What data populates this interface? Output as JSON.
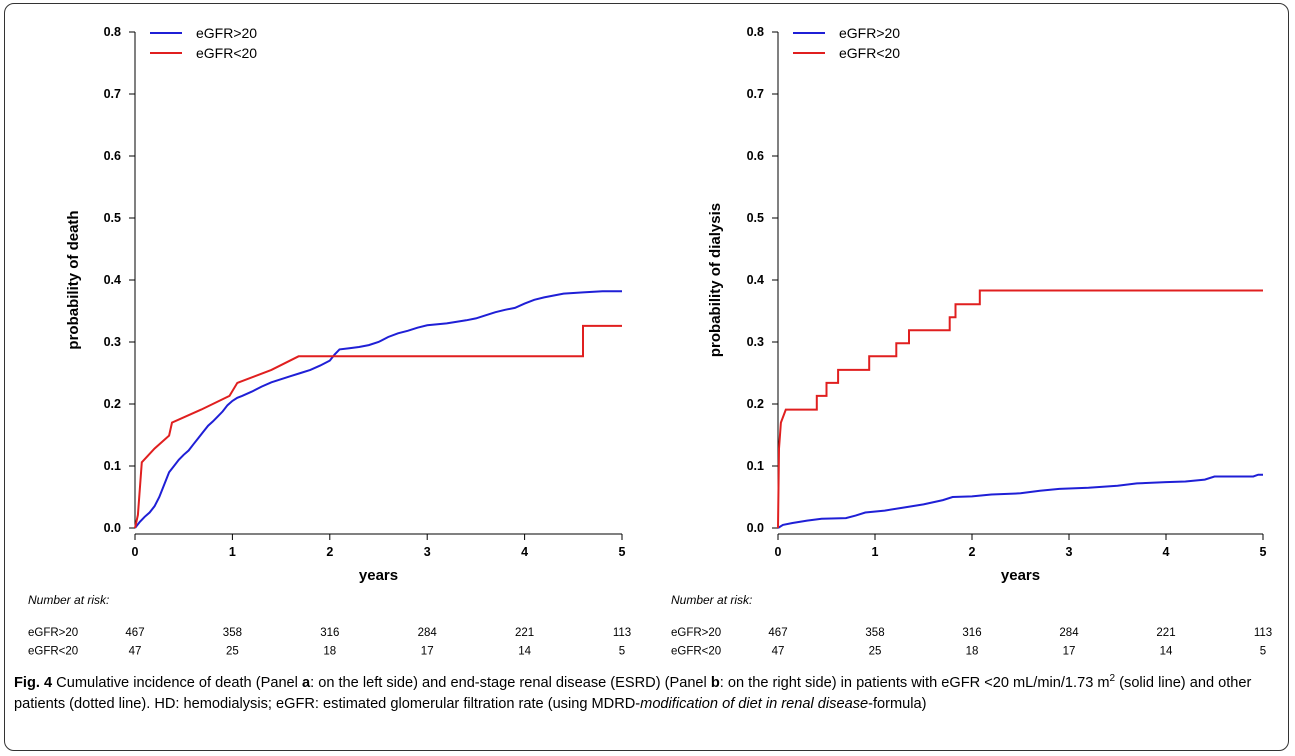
{
  "chart_data": [
    {
      "type": "line",
      "panel": "a",
      "xlabel": "years",
      "ylabel": "probability of death",
      "xlim": [
        0,
        5
      ],
      "ylim": [
        0,
        0.8
      ],
      "xticks": [
        0,
        1,
        2,
        3,
        4,
        5
      ],
      "yticks": [
        0.0,
        0.1,
        0.2,
        0.3,
        0.4,
        0.5,
        0.6,
        0.7,
        0.8
      ],
      "ytick_labels": [
        "0.0",
        "0.1",
        "0.2",
        "0.3",
        "0.4",
        "0.5",
        "0.6",
        "0.7",
        "0.8"
      ],
      "legend_position": "top-left",
      "series": [
        {
          "name": "eGFR>20",
          "color": "#1f1fd6",
          "points": [
            [
              0,
              0
            ],
            [
              0.05,
              0.01
            ],
            [
              0.1,
              0.018
            ],
            [
              0.15,
              0.025
            ],
            [
              0.2,
              0.035
            ],
            [
              0.25,
              0.05
            ],
            [
              0.3,
              0.07
            ],
            [
              0.35,
              0.09
            ],
            [
              0.4,
              0.1
            ],
            [
              0.45,
              0.11
            ],
            [
              0.5,
              0.118
            ],
            [
              0.55,
              0.125
            ],
            [
              0.6,
              0.135
            ],
            [
              0.65,
              0.145
            ],
            [
              0.7,
              0.155
            ],
            [
              0.75,
              0.165
            ],
            [
              0.8,
              0.172
            ],
            [
              0.85,
              0.18
            ],
            [
              0.9,
              0.188
            ],
            [
              0.95,
              0.198
            ],
            [
              1.0,
              0.205
            ],
            [
              1.05,
              0.21
            ],
            [
              1.1,
              0.213
            ],
            [
              1.2,
              0.22
            ],
            [
              1.3,
              0.228
            ],
            [
              1.4,
              0.235
            ],
            [
              1.5,
              0.24
            ],
            [
              1.6,
              0.245
            ],
            [
              1.7,
              0.25
            ],
            [
              1.8,
              0.255
            ],
            [
              1.9,
              0.262
            ],
            [
              2.0,
              0.27
            ],
            [
              2.05,
              0.28
            ],
            [
              2.1,
              0.288
            ],
            [
              2.2,
              0.29
            ],
            [
              2.3,
              0.292
            ],
            [
              2.4,
              0.295
            ],
            [
              2.5,
              0.3
            ],
            [
              2.6,
              0.308
            ],
            [
              2.7,
              0.314
            ],
            [
              2.8,
              0.318
            ],
            [
              2.9,
              0.323
            ],
            [
              3.0,
              0.327
            ],
            [
              3.2,
              0.33
            ],
            [
              3.4,
              0.335
            ],
            [
              3.5,
              0.338
            ],
            [
              3.6,
              0.343
            ],
            [
              3.7,
              0.348
            ],
            [
              3.8,
              0.352
            ],
            [
              3.9,
              0.355
            ],
            [
              4.0,
              0.362
            ],
            [
              4.1,
              0.368
            ],
            [
              4.2,
              0.372
            ],
            [
              4.3,
              0.375
            ],
            [
              4.4,
              0.378
            ],
            [
              4.6,
              0.38
            ],
            [
              4.8,
              0.382
            ],
            [
              5.0,
              0.382
            ]
          ]
        },
        {
          "name": "eGFR<20",
          "color": "#e01f1f",
          "points": [
            [
              0,
              0
            ],
            [
              0.03,
              0.021
            ],
            [
              0.07,
              0.106
            ],
            [
              0.2,
              0.128
            ],
            [
              0.35,
              0.149
            ],
            [
              0.38,
              0.17
            ],
            [
              0.68,
              0.191
            ],
            [
              0.97,
              0.213
            ],
            [
              1.05,
              0.234
            ],
            [
              1.4,
              0.255
            ],
            [
              1.68,
              0.277
            ],
            [
              4.6,
              0.277
            ],
            [
              4.6,
              0.326
            ],
            [
              5.0,
              0.326
            ]
          ]
        }
      ],
      "risk_table": {
        "title": "Number at risk:",
        "times": [
          0,
          1,
          2,
          3,
          4,
          5
        ],
        "rows": [
          {
            "label": "eGFR>20",
            "values": [
              "467",
              "358",
              "316",
              "284",
              "221",
              "113"
            ]
          },
          {
            "label": "eGFR<20",
            "values": [
              "47",
              "25",
              "18",
              "17",
              "14",
              "5"
            ]
          }
        ]
      }
    },
    {
      "type": "line",
      "panel": "b",
      "xlabel": "years",
      "ylabel": "probability of dialysis",
      "xlim": [
        0,
        5
      ],
      "ylim": [
        0,
        0.8
      ],
      "xticks": [
        0,
        1,
        2,
        3,
        4,
        5
      ],
      "yticks": [
        0.0,
        0.1,
        0.2,
        0.3,
        0.4,
        0.5,
        0.6,
        0.7,
        0.8
      ],
      "ytick_labels": [
        "0.0",
        "0.1",
        "0.2",
        "0.3",
        "0.4",
        "0.5",
        "0.6",
        "0.7",
        "0.8"
      ],
      "legend_position": "top-left",
      "series": [
        {
          "name": "eGFR>20",
          "color": "#1f1fd6",
          "points": [
            [
              0,
              0
            ],
            [
              0.05,
              0.005
            ],
            [
              0.15,
              0.008
            ],
            [
              0.3,
              0.012
            ],
            [
              0.45,
              0.015
            ],
            [
              0.7,
              0.016
            ],
            [
              0.8,
              0.02
            ],
            [
              0.9,
              0.025
            ],
            [
              1.1,
              0.028
            ],
            [
              1.3,
              0.033
            ],
            [
              1.5,
              0.038
            ],
            [
              1.7,
              0.045
            ],
            [
              1.8,
              0.05
            ],
            [
              2.0,
              0.051
            ],
            [
              2.2,
              0.054
            ],
            [
              2.5,
              0.056
            ],
            [
              2.7,
              0.06
            ],
            [
              2.9,
              0.063
            ],
            [
              3.2,
              0.065
            ],
            [
              3.5,
              0.068
            ],
            [
              3.7,
              0.072
            ],
            [
              4.0,
              0.074
            ],
            [
              4.2,
              0.075
            ],
            [
              4.4,
              0.078
            ],
            [
              4.5,
              0.083
            ],
            [
              4.9,
              0.083
            ],
            [
              4.95,
              0.086
            ],
            [
              5.0,
              0.086
            ]
          ]
        },
        {
          "name": "eGFR<20",
          "color": "#e01f1f",
          "points": [
            [
              0,
              0
            ],
            [
              0.01,
              0.128
            ],
            [
              0.03,
              0.17
            ],
            [
              0.08,
              0.191
            ],
            [
              0.4,
              0.191
            ],
            [
              0.4,
              0.213
            ],
            [
              0.5,
              0.213
            ],
            [
              0.5,
              0.234
            ],
            [
              0.62,
              0.234
            ],
            [
              0.62,
              0.255
            ],
            [
              0.94,
              0.255
            ],
            [
              0.94,
              0.277
            ],
            [
              1.22,
              0.277
            ],
            [
              1.22,
              0.298
            ],
            [
              1.35,
              0.298
            ],
            [
              1.35,
              0.319
            ],
            [
              1.77,
              0.319
            ],
            [
              1.77,
              0.34
            ],
            [
              1.83,
              0.34
            ],
            [
              1.83,
              0.361
            ],
            [
              2.08,
              0.361
            ],
            [
              2.08,
              0.383
            ],
            [
              5.0,
              0.383
            ]
          ]
        }
      ],
      "risk_table": {
        "title": "Number at risk:",
        "times": [
          0,
          1,
          2,
          3,
          4,
          5
        ],
        "rows": [
          {
            "label": "eGFR>20",
            "values": [
              "467",
              "358",
              "316",
              "284",
              "221",
              "113"
            ]
          },
          {
            "label": "eGFR<20",
            "values": [
              "47",
              "25",
              "18",
              "17",
              "14",
              "5"
            ]
          }
        ]
      }
    }
  ],
  "caption": {
    "fig_label": "Fig. 4",
    "text_1": " Cumulative incidence of death (Panel ",
    "panel_a": "a",
    "text_2": ": on the left side) and end-stage renal disease (ESRD) (Panel ",
    "panel_b": "b",
    "text_3": ": on the right side) in patients with eGFR <20 mL/min/1.73 m",
    "superscript": "2",
    "text_4": " (solid line) and other patients (dotted line). HD: hemodialysis; eGFR: estimated glomerular filtration rate (using MDRD-",
    "italic_text": "modification of diet in renal disease",
    "text_5": "-formula)"
  }
}
